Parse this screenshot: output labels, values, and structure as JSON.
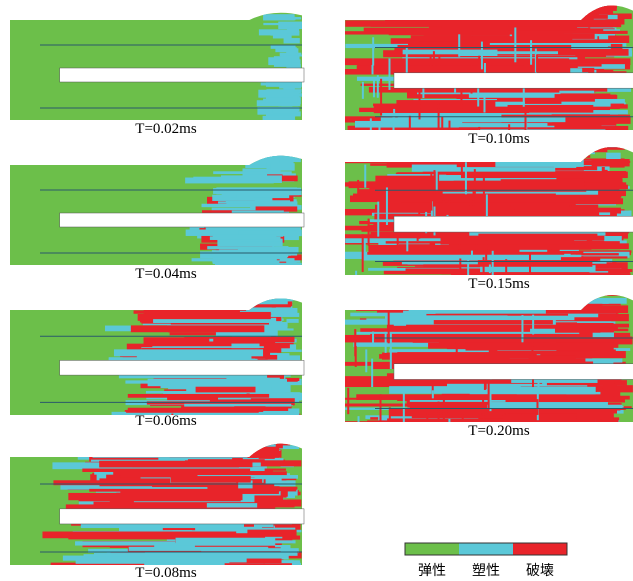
{
  "panels": [
    {
      "label": "T=0.02ms"
    },
    {
      "label": "T=0.04ms"
    },
    {
      "label": "T=0.06ms"
    },
    {
      "label": "T=0.08ms"
    },
    {
      "label": "T=0.10ms"
    },
    {
      "label": "T=0.15ms"
    },
    {
      "label": "T=0.20ms"
    }
  ],
  "legend": [
    {
      "label": "弹性",
      "color": "#6cbf4a"
    },
    {
      "label": "塑性",
      "color": "#5bc8d8"
    },
    {
      "label": "破壊",
      "color": "#e8242a"
    }
  ]
}
